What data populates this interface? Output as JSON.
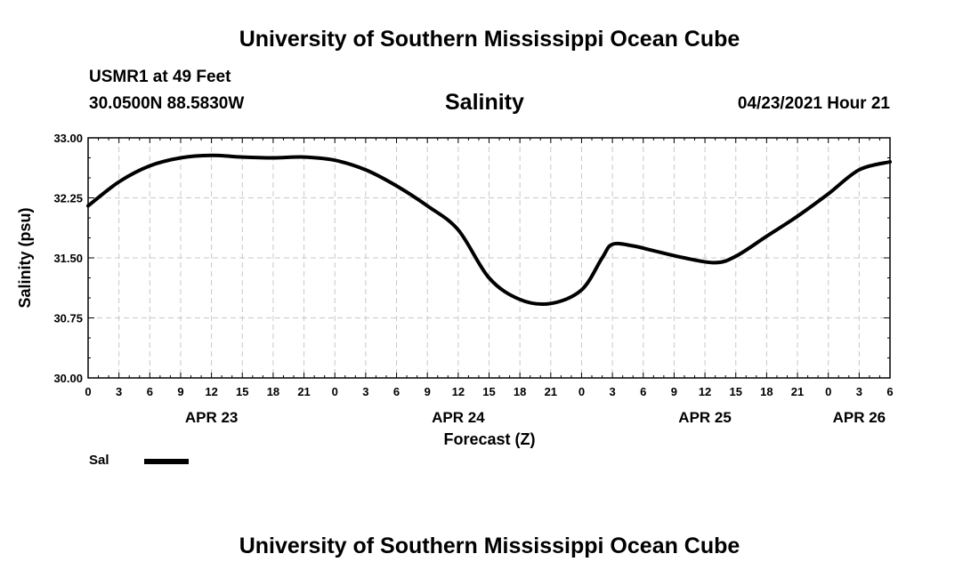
{
  "header": {
    "title_top": "University of Southern Mississippi Ocean Cube",
    "station": "USMR1 at 49 Feet",
    "coords": "30.0500N  88.5830W",
    "variable": "Salinity",
    "datetime": "04/23/2021 Hour 21"
  },
  "footer": {
    "title_bottom": "University of Southern Mississippi Ocean Cube"
  },
  "legend": {
    "label": "Sal",
    "color": "#000000"
  },
  "chart_data": {
    "type": "line",
    "title": "Salinity",
    "xlabel": "Forecast (Z)",
    "ylabel": "Salinity (psu)",
    "ylim": [
      30.0,
      33.0
    ],
    "y_ticks": [
      "30.00",
      "30.75",
      "31.50",
      "32.25",
      "33.00"
    ],
    "xlim_hours": [
      0,
      78
    ],
    "x_tick_labels": [
      "0",
      "3",
      "6",
      "9",
      "12",
      "15",
      "18",
      "21",
      "0",
      "3",
      "6",
      "9",
      "12",
      "15",
      "18",
      "21",
      "0",
      "3",
      "6",
      "9",
      "12",
      "15",
      "18",
      "21",
      "0",
      "3",
      "6"
    ],
    "date_labels": [
      {
        "label": "APR 23",
        "hour": 12
      },
      {
        "label": "APR 24",
        "hour": 36
      },
      {
        "label": "APR 25",
        "hour": 60
      },
      {
        "label": "APR 26",
        "hour": 75
      }
    ],
    "grid": true,
    "series": [
      {
        "name": "Sal",
        "x": [
          0,
          3,
          6,
          9,
          12,
          15,
          18,
          21,
          24,
          27,
          30,
          33,
          36,
          39,
          42,
          45,
          48,
          50,
          51,
          53,
          55,
          58,
          61,
          63,
          66,
          69,
          72,
          75,
          78
        ],
        "values": [
          32.15,
          32.45,
          32.65,
          32.75,
          32.78,
          32.76,
          32.75,
          32.76,
          32.72,
          32.6,
          32.4,
          32.15,
          31.85,
          31.25,
          30.98,
          30.93,
          31.1,
          31.5,
          31.67,
          31.65,
          31.59,
          31.5,
          31.44,
          31.52,
          31.77,
          32.02,
          32.3,
          32.6,
          32.7
        ]
      }
    ]
  }
}
